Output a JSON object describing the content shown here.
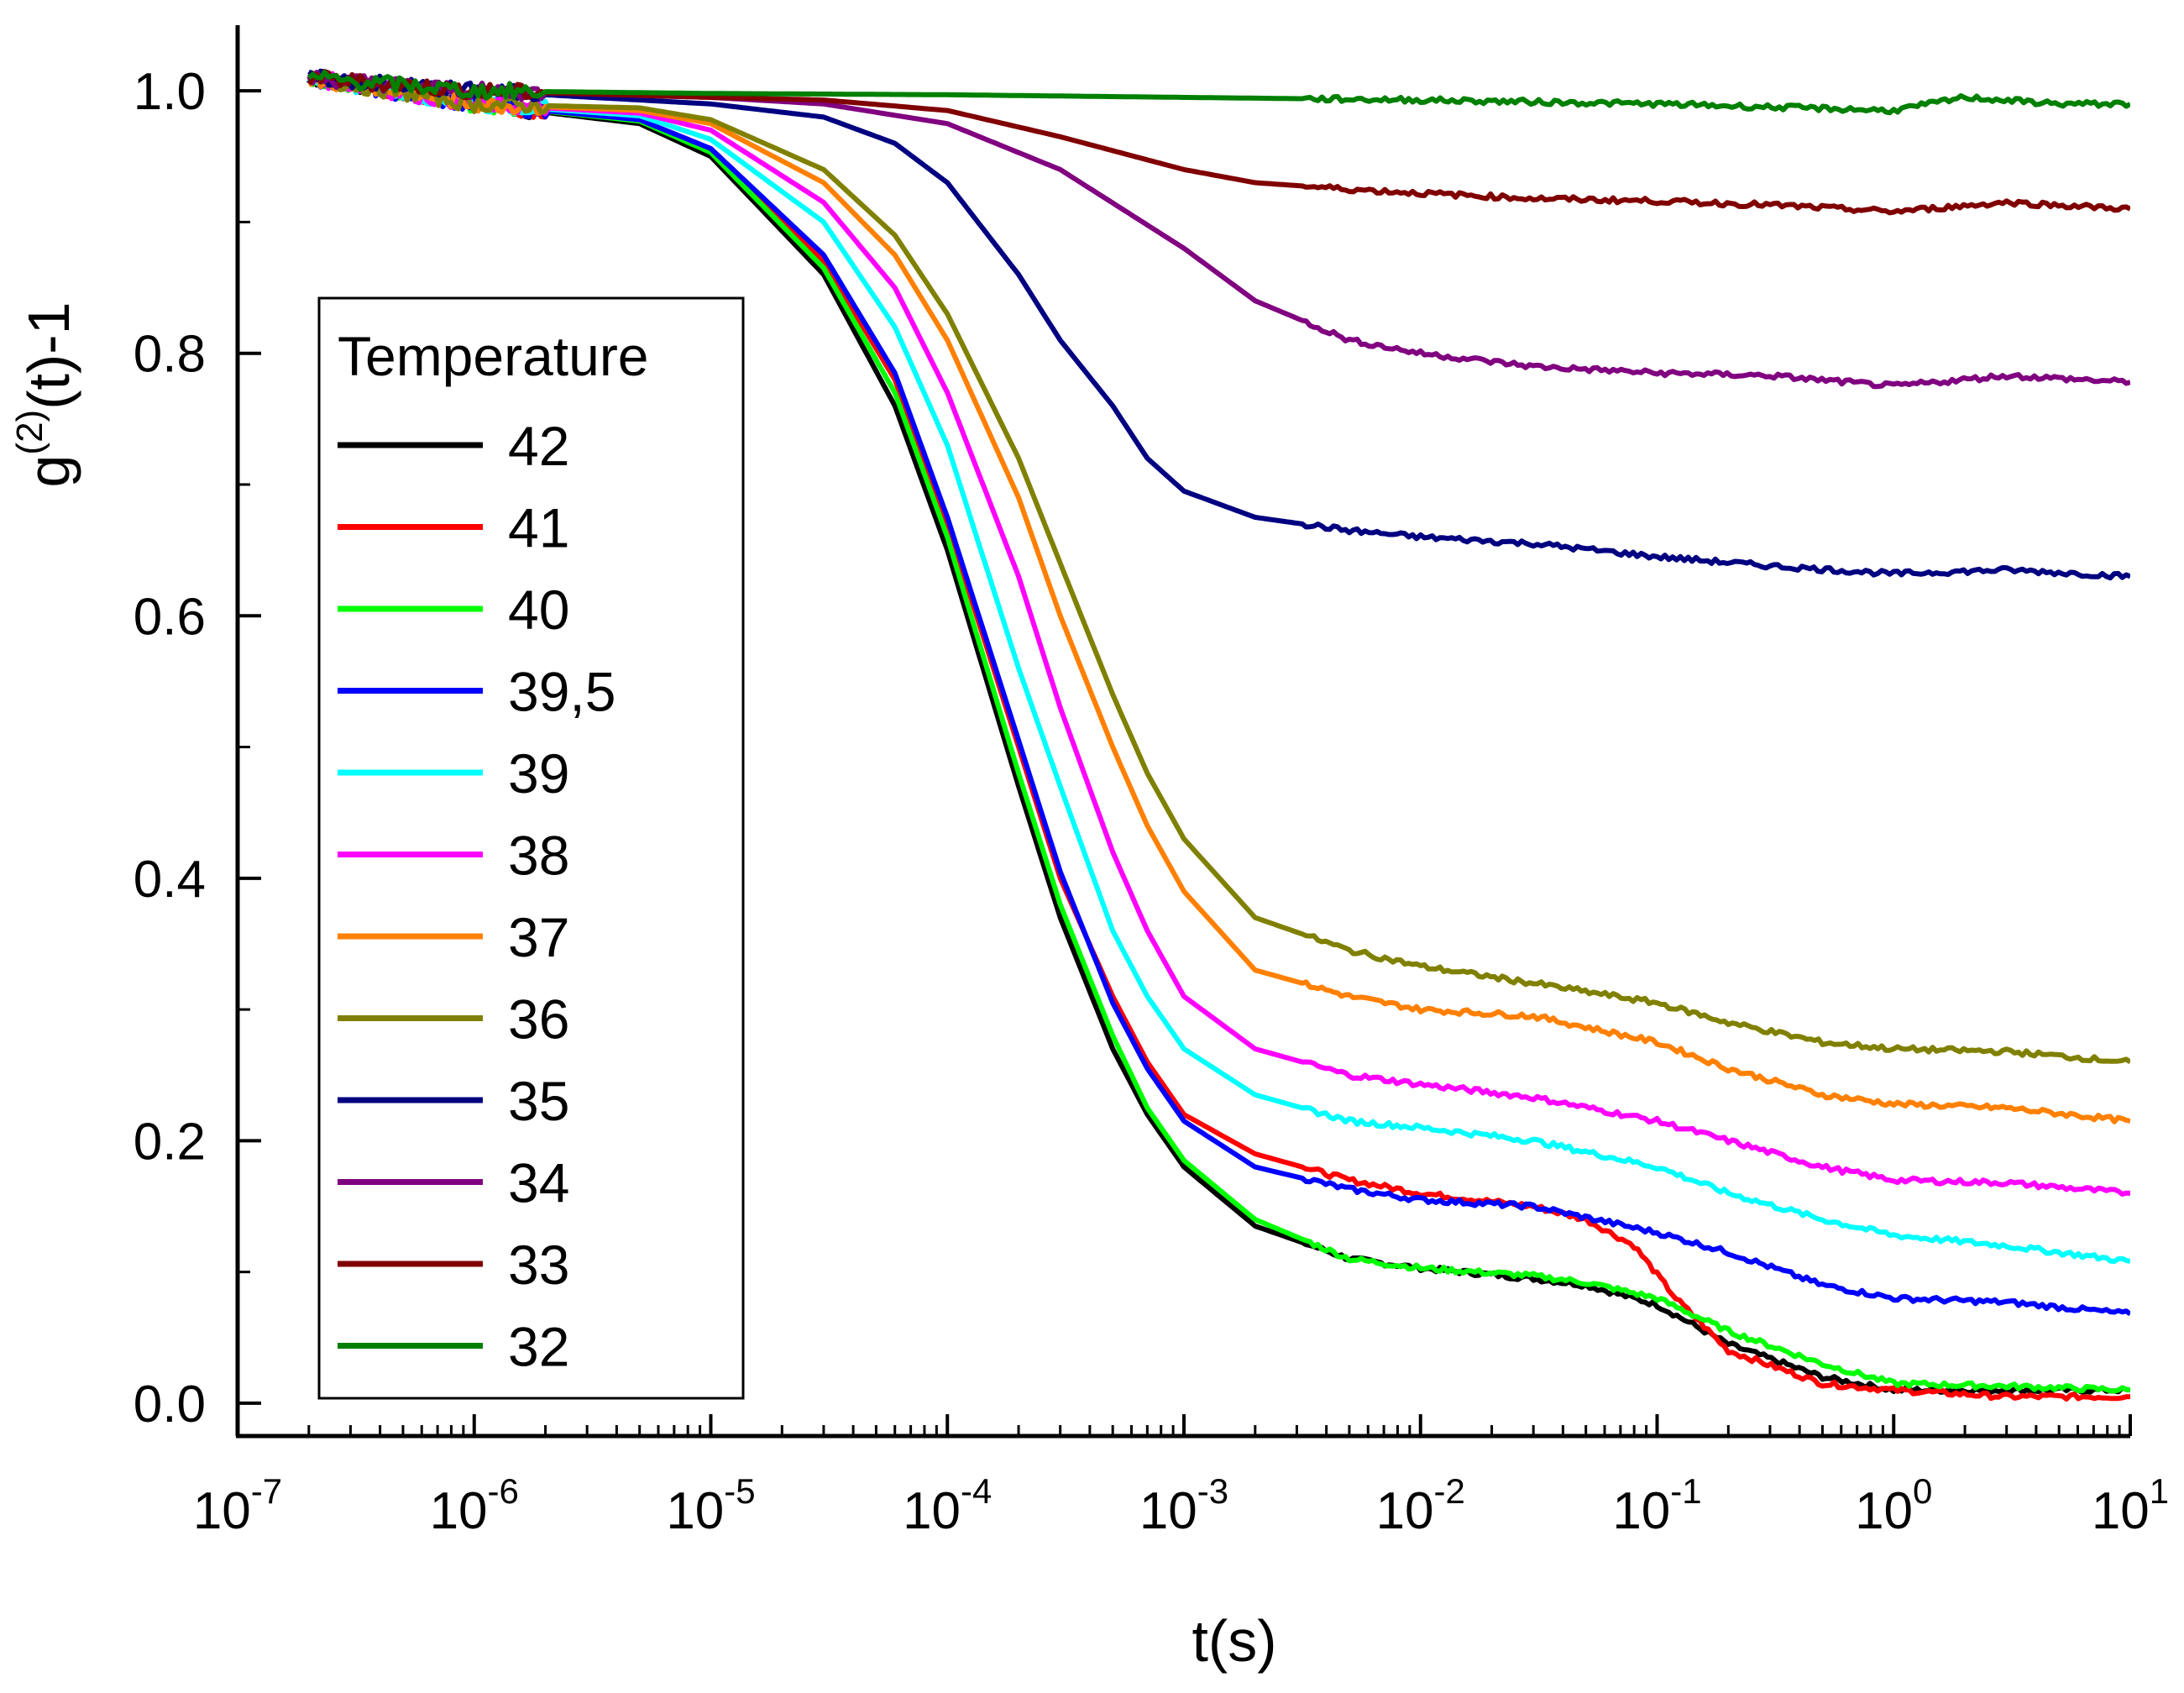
{
  "chart_data": {
    "type": "line",
    "title": "",
    "xlabel": "t(s)",
    "ylabel": {
      "base": "g",
      "superscript": "(2)",
      "suffix": "(t)-1"
    },
    "x_scale": "log",
    "xlim": [
      1e-07,
      10
    ],
    "ylim": [
      -0.025,
      1.05
    ],
    "grid": false,
    "x_ticks": [
      {
        "base": "10",
        "exp": "-7"
      },
      {
        "base": "10",
        "exp": "-6"
      },
      {
        "base": "10",
        "exp": "-5"
      },
      {
        "base": "10",
        "exp": "-4"
      },
      {
        "base": "10",
        "exp": "-3"
      },
      {
        "base": "10",
        "exp": "-2"
      },
      {
        "base": "10",
        "exp": "-1"
      },
      {
        "base": "10",
        "exp": "0"
      },
      {
        "base": "10",
        "exp": "1"
      }
    ],
    "y_ticks": [
      {
        "value": 0.0,
        "label": "0.0"
      },
      {
        "value": 0.2,
        "label": "0.2"
      },
      {
        "value": 0.4,
        "label": "0.4"
      },
      {
        "value": 0.6,
        "label": "0.6"
      },
      {
        "value": 0.8,
        "label": "0.8"
      },
      {
        "value": 1.0,
        "label": "1.0"
      }
    ],
    "legend": {
      "title": "Temperature",
      "position": "left-middle"
    },
    "series": [
      {
        "name": "42",
        "color": "#000000",
        "x": [
          2e-07,
          1e-06,
          5e-06,
          1e-05,
          3e-05,
          6e-05,
          0.0001,
          0.0002,
          0.0003,
          0.0005,
          0.0007,
          0.001,
          0.002,
          0.005,
          0.01,
          0.03,
          0.05,
          0.1,
          0.2,
          0.5,
          1,
          3,
          10
        ],
        "y": [
          1.01,
          0.99,
          0.975,
          0.95,
          0.86,
          0.76,
          0.65,
          0.47,
          0.37,
          0.27,
          0.22,
          0.18,
          0.135,
          0.11,
          0.103,
          0.095,
          0.09,
          0.075,
          0.045,
          0.02,
          0.01,
          0.01,
          0.01
        ]
      },
      {
        "name": "41",
        "color": "#ff0000",
        "x": [
          2e-07,
          1e-06,
          5e-06,
          1e-05,
          3e-05,
          6e-05,
          0.0001,
          0.0002,
          0.0003,
          0.0005,
          0.0007,
          0.001,
          0.002,
          0.005,
          0.01,
          0.03,
          0.05,
          0.08,
          0.12,
          0.2,
          0.5,
          1,
          3,
          10
        ],
        "y": [
          1.01,
          0.99,
          0.978,
          0.955,
          0.87,
          0.78,
          0.67,
          0.5,
          0.4,
          0.31,
          0.26,
          0.22,
          0.19,
          0.17,
          0.16,
          0.15,
          0.14,
          0.12,
          0.08,
          0.04,
          0.015,
          0.01,
          0.005,
          0.005
        ]
      },
      {
        "name": "40",
        "color": "#00ff00",
        "x": [
          2e-07,
          1e-06,
          5e-06,
          1e-05,
          3e-05,
          6e-05,
          0.0001,
          0.0002,
          0.0003,
          0.0005,
          0.0007,
          0.001,
          0.002,
          0.005,
          0.01,
          0.03,
          0.05,
          0.1,
          0.2,
          0.5,
          1,
          3,
          10
        ],
        "y": [
          1.01,
          0.99,
          0.977,
          0.953,
          0.865,
          0.77,
          0.66,
          0.48,
          0.38,
          0.28,
          0.225,
          0.185,
          0.14,
          0.11,
          0.103,
          0.097,
          0.092,
          0.08,
          0.055,
          0.03,
          0.015,
          0.013,
          0.01
        ]
      },
      {
        "name": "39,5",
        "color": "#0000ff",
        "x": [
          2e-07,
          1e-06,
          5e-06,
          1e-05,
          3e-05,
          6e-05,
          0.0001,
          0.0002,
          0.0003,
          0.0005,
          0.0007,
          0.001,
          0.002,
          0.005,
          0.01,
          0.03,
          0.1,
          0.2,
          0.5,
          1,
          3,
          10
        ],
        "y": [
          1.01,
          0.99,
          0.978,
          0.956,
          0.875,
          0.785,
          0.675,
          0.505,
          0.405,
          0.305,
          0.255,
          0.215,
          0.18,
          0.163,
          0.155,
          0.15,
          0.13,
          0.115,
          0.09,
          0.08,
          0.077,
          0.068
        ]
      },
      {
        "name": "39",
        "color": "#00ffff",
        "x": [
          2e-07,
          1e-06,
          5e-06,
          1e-05,
          3e-05,
          6e-05,
          0.0001,
          0.0002,
          0.0003,
          0.0005,
          0.0007,
          0.001,
          0.002,
          0.005,
          0.01,
          0.03,
          0.1,
          0.2,
          0.5,
          1,
          3,
          10
        ],
        "y": [
          1.01,
          0.99,
          0.981,
          0.963,
          0.9,
          0.82,
          0.73,
          0.56,
          0.47,
          0.36,
          0.31,
          0.27,
          0.235,
          0.215,
          0.21,
          0.2,
          0.18,
          0.16,
          0.14,
          0.128,
          0.12,
          0.108
        ]
      },
      {
        "name": "38",
        "color": "#ff00ff",
        "x": [
          2e-07,
          1e-06,
          5e-06,
          1e-05,
          3e-05,
          6e-05,
          0.0001,
          0.0002,
          0.0003,
          0.0005,
          0.0007,
          0.001,
          0.002,
          0.005,
          0.01,
          0.03,
          0.1,
          0.2,
          0.5,
          1,
          3,
          10
        ],
        "y": [
          1.01,
          0.99,
          0.983,
          0.97,
          0.915,
          0.85,
          0.77,
          0.63,
          0.53,
          0.42,
          0.36,
          0.31,
          0.27,
          0.25,
          0.243,
          0.233,
          0.215,
          0.2,
          0.18,
          0.17,
          0.168,
          0.16
        ]
      },
      {
        "name": "37",
        "color": "#ff8000",
        "x": [
          2e-07,
          1e-06,
          5e-06,
          1e-05,
          3e-05,
          6e-05,
          0.0001,
          0.0002,
          0.0003,
          0.0005,
          0.0007,
          0.001,
          0.002,
          0.005,
          0.01,
          0.03,
          0.1,
          0.2,
          0.5,
          1,
          3,
          10
        ],
        "y": [
          1.01,
          0.99,
          0.985,
          0.975,
          0.93,
          0.875,
          0.81,
          0.69,
          0.6,
          0.5,
          0.44,
          0.39,
          0.33,
          0.31,
          0.3,
          0.295,
          0.275,
          0.255,
          0.235,
          0.228,
          0.225,
          0.215
        ]
      },
      {
        "name": "36",
        "color": "#808000",
        "x": [
          2e-07,
          1e-06,
          5e-06,
          1e-05,
          3e-05,
          6e-05,
          0.0001,
          0.0002,
          0.0003,
          0.0005,
          0.0007,
          0.001,
          0.002,
          0.005,
          0.01,
          0.03,
          0.1,
          0.2,
          0.5,
          1,
          3,
          10
        ],
        "y": [
          1.01,
          0.99,
          0.987,
          0.978,
          0.94,
          0.89,
          0.83,
          0.72,
          0.64,
          0.54,
          0.48,
          0.43,
          0.37,
          0.345,
          0.333,
          0.32,
          0.305,
          0.29,
          0.275,
          0.27,
          0.268,
          0.26
        ]
      },
      {
        "name": "35",
        "color": "#000080",
        "x": [
          2e-07,
          1e-06,
          1e-05,
          3e-05,
          6e-05,
          0.0001,
          0.0002,
          0.0003,
          0.0005,
          0.0007,
          0.001,
          0.002,
          0.005,
          0.01,
          0.03,
          0.1,
          0.3,
          1,
          3,
          10
        ],
        "y": [
          1.01,
          1.0,
          0.99,
          0.98,
          0.96,
          0.93,
          0.86,
          0.81,
          0.76,
          0.72,
          0.695,
          0.675,
          0.665,
          0.66,
          0.655,
          0.645,
          0.638,
          0.632,
          0.635,
          0.63
        ]
      },
      {
        "name": "34",
        "color": "#800080",
        "x": [
          2e-07,
          1e-06,
          1e-05,
          3e-05,
          0.0001,
          0.0003,
          0.001,
          0.002,
          0.005,
          0.01,
          0.03,
          0.1,
          0.3,
          1,
          3,
          10
        ],
        "y": [
          1.01,
          1.0,
          0.995,
          0.99,
          0.975,
          0.94,
          0.88,
          0.84,
          0.81,
          0.8,
          0.79,
          0.785,
          0.783,
          0.775,
          0.783,
          0.778
        ]
      },
      {
        "name": "33",
        "color": "#800000",
        "x": [
          2e-07,
          1e-06,
          1e-05,
          3e-05,
          0.0001,
          0.0003,
          0.001,
          0.002,
          0.005,
          0.01,
          0.03,
          0.1,
          0.3,
          1,
          3,
          10
        ],
        "y": [
          1.01,
          1.0,
          0.995,
          0.993,
          0.985,
          0.965,
          0.94,
          0.93,
          0.925,
          0.922,
          0.918,
          0.916,
          0.913,
          0.908,
          0.915,
          0.91
        ]
      },
      {
        "name": "32",
        "color": "#008000",
        "x": [
          2e-07,
          1e-06,
          1e-05,
          0.0001,
          0.001,
          0.01,
          0.1,
          1,
          2,
          5,
          10
        ],
        "y": [
          1.01,
          1.0,
          0.998,
          0.997,
          0.995,
          0.993,
          0.99,
          0.985,
          0.995,
          0.99,
          0.99
        ]
      }
    ]
  }
}
